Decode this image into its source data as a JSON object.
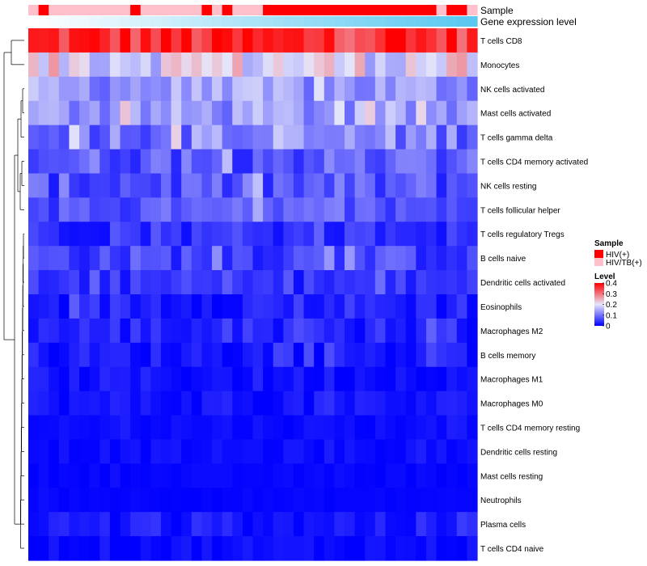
{
  "chart_data": {
    "type": "heatmap",
    "title": "",
    "annotation_tracks": [
      {
        "name": "Sample",
        "label": "Sample"
      },
      {
        "name": "Gene expression level",
        "label": "Gene expression level"
      }
    ],
    "sample_groups": [
      "HIV/TB(+)",
      "HIV(+)",
      "HIV/TB(+)",
      "HIV/TB(+)",
      "HIV/TB(+)",
      "HIV/TB(+)",
      "HIV/TB(+)",
      "HIV/TB(+)",
      "HIV/TB(+)",
      "HIV/TB(+)",
      "HIV(+)",
      "HIV/TB(+)",
      "HIV/TB(+)",
      "HIV/TB(+)",
      "HIV/TB(+)",
      "HIV/TB(+)",
      "HIV/TB(+)",
      "HIV(+)",
      "HIV/TB(+)",
      "HIV(+)",
      "HIV/TB(+)",
      "HIV/TB(+)",
      "HIV/TB(+)",
      "HIV(+)",
      "HIV(+)",
      "HIV(+)",
      "HIV(+)",
      "HIV(+)",
      "HIV(+)",
      "HIV(+)",
      "HIV(+)",
      "HIV(+)",
      "HIV(+)",
      "HIV(+)",
      "HIV(+)",
      "HIV(+)",
      "HIV(+)",
      "HIV(+)",
      "HIV(+)",
      "HIV(+)",
      "HIV/TB(+)",
      "HIV(+)",
      "HIV(+)",
      "HIV/TB(+)"
    ],
    "expression_track": "gradient",
    "rows": [
      "T cells CD8",
      "Monocytes",
      "NK cells activated",
      "Mast cells activated",
      "T cells gamma delta",
      "T cells CD4 memory activated",
      "NK cells resting",
      "T cells follicular helper",
      "T cells regulatory  Tregs",
      "B cells naive",
      "Dendritic cells activated",
      "Eosinophils",
      "Macrophages M2",
      "B cells memory",
      "Macrophages M1",
      "Macrophages M0",
      "T cells CD4 memory resting",
      "Dendritic cells resting",
      "Mast cells resting",
      "Neutrophils",
      "Plasma cells",
      "T cells CD4 naive"
    ],
    "row_mean": [
      0.36,
      0.2,
      0.13,
      0.13,
      0.11,
      0.08,
      0.07,
      0.07,
      0.04,
      0.06,
      0.04,
      0.03,
      0.03,
      0.02,
      0.015,
      0.015,
      0.01,
      0.01,
      0.005,
      0.004,
      0.02,
      0.01
    ],
    "row_variation": [
      0.06,
      0.07,
      0.05,
      0.05,
      0.06,
      0.05,
      0.05,
      0.04,
      0.03,
      0.04,
      0.03,
      0.03,
      0.03,
      0.025,
      0.02,
      0.02,
      0.01,
      0.01,
      0.005,
      0.004,
      0.025,
      0.015
    ],
    "n_columns": 44,
    "color_range": [
      0,
      0.4
    ],
    "color_scale": {
      "low": "#0000ff",
      "mid": "#e6e6fa",
      "high": "#ff0000"
    },
    "legend": {
      "sample_title": "Sample",
      "sample_entries": [
        {
          "label": "HIV(+)",
          "color": "#ff0000"
        },
        {
          "label": "HIV/TB(+)",
          "color": "#ffc0cb"
        }
      ],
      "level_title": "Level",
      "level_ticks": [
        "0.4",
        "0.3",
        "0.2",
        "0.1",
        "0"
      ],
      "level_tick_values": [
        0.4,
        0.3,
        0.2,
        0.1,
        0
      ]
    },
    "row_dendrogram": true
  }
}
